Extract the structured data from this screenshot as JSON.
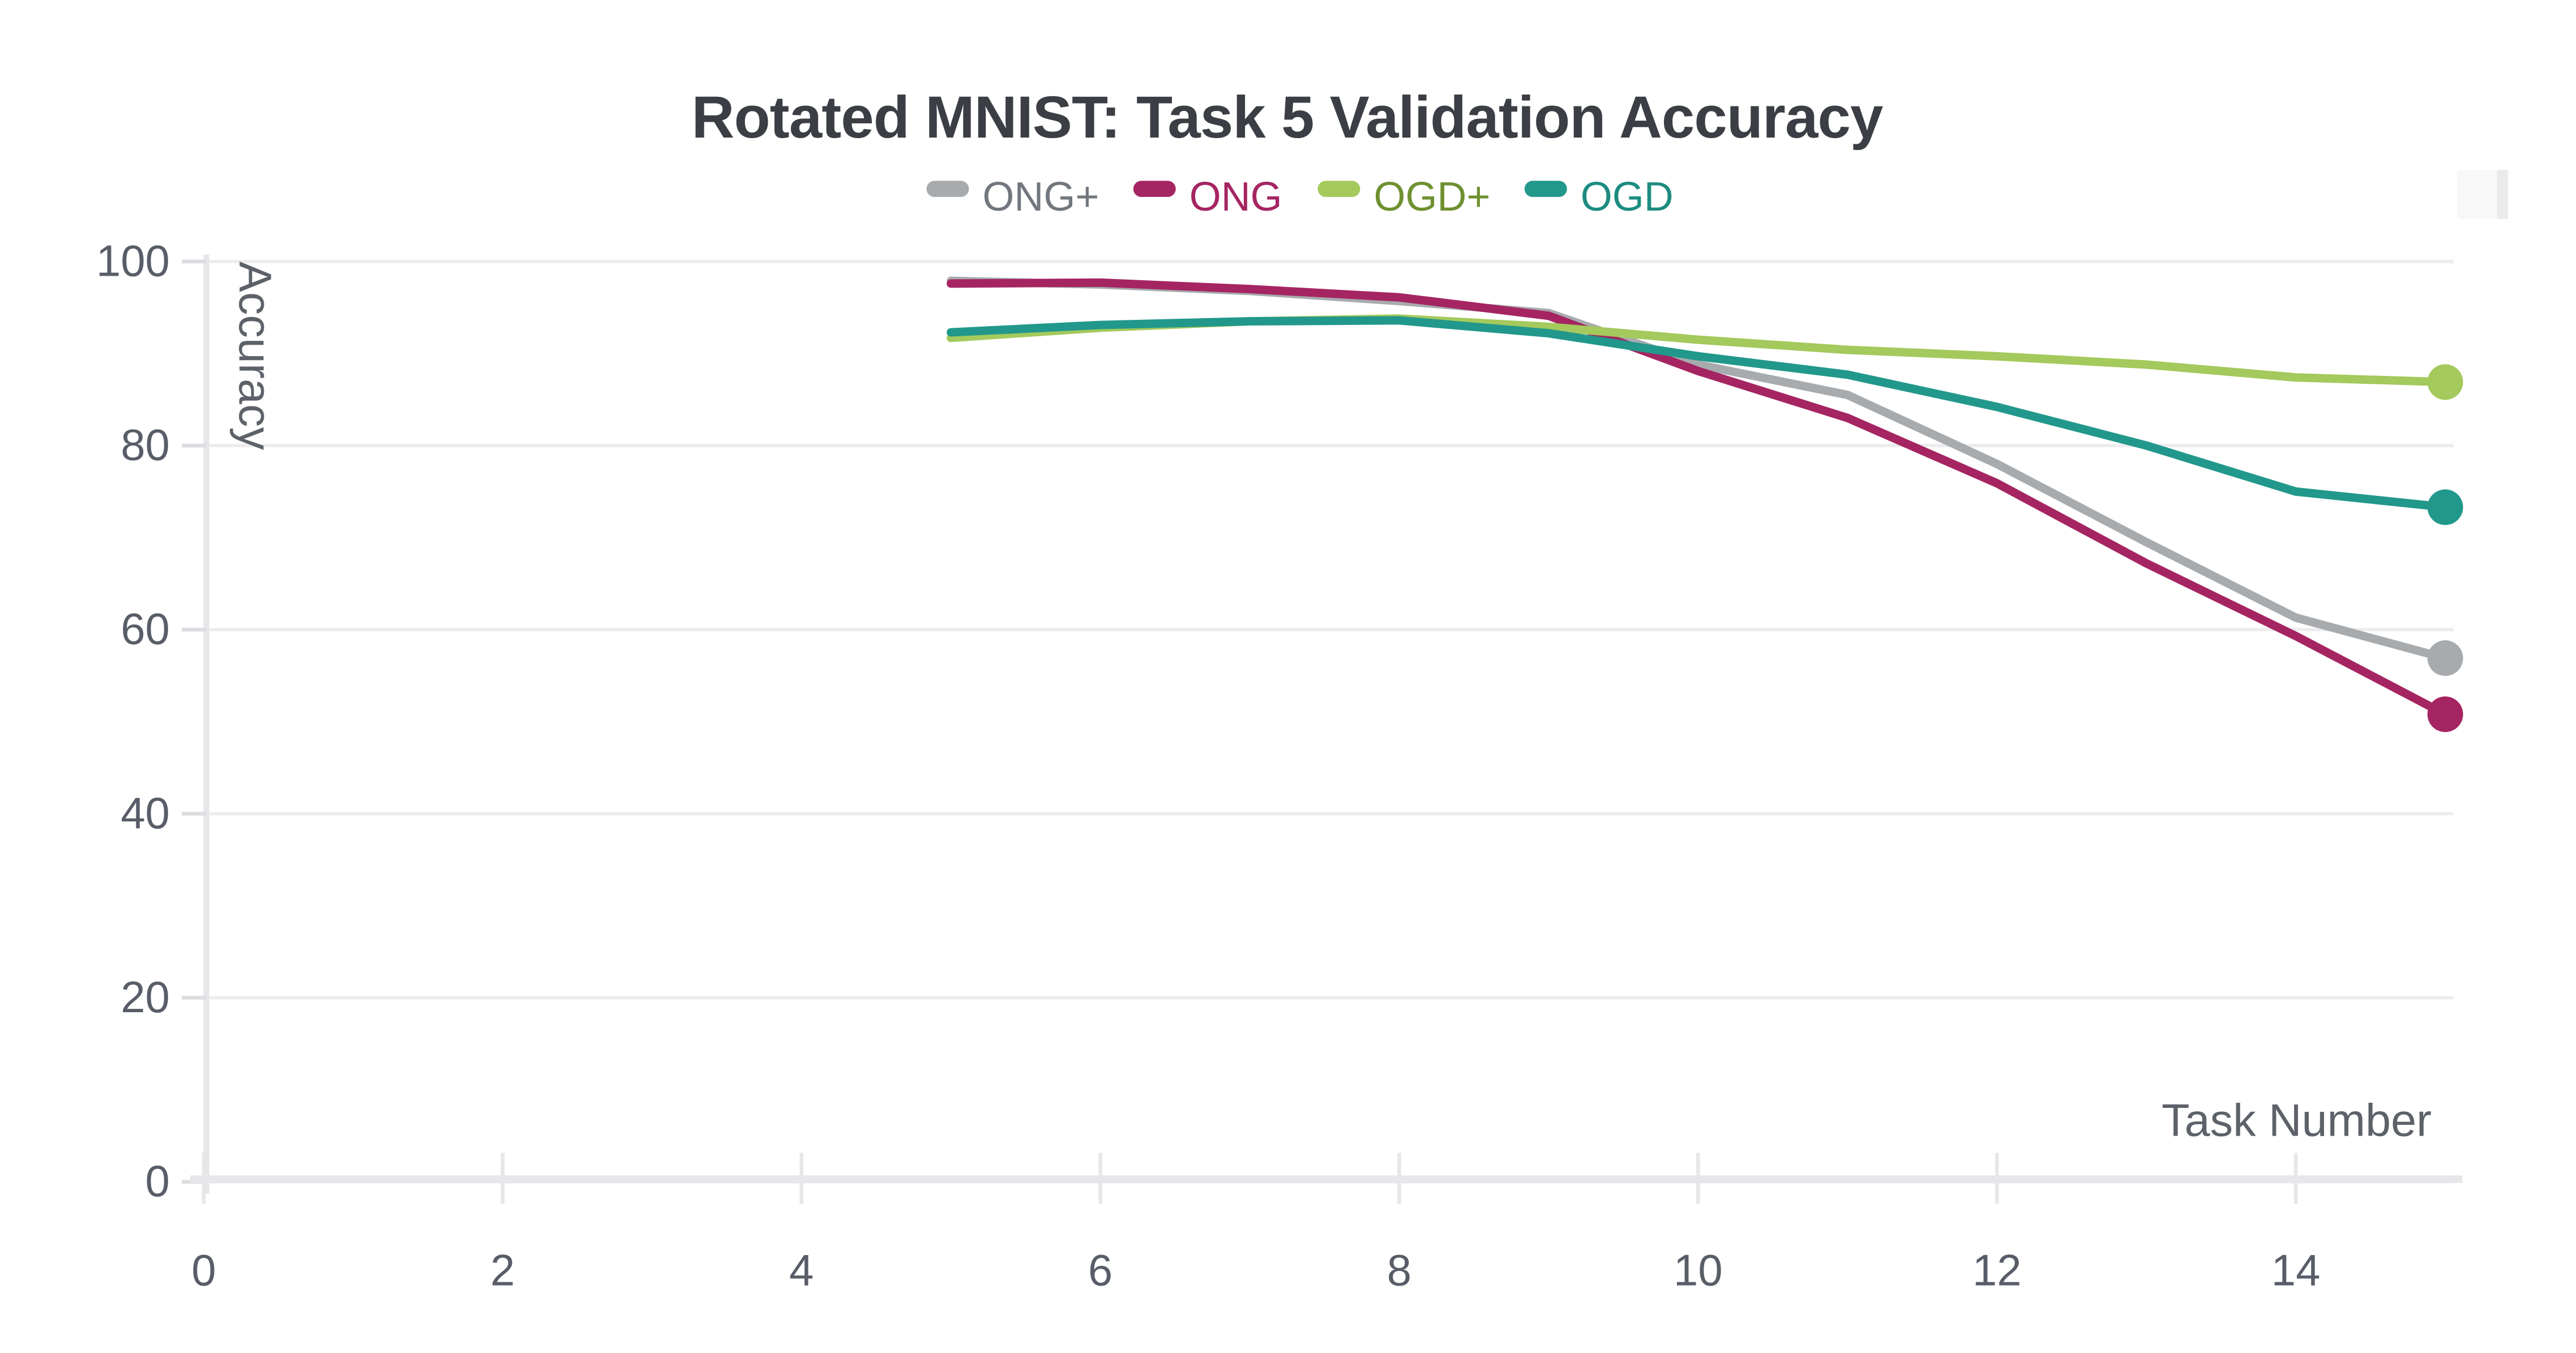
{
  "header": {
    "title": "Rotated MNIST: Task 5 Validation Accuracy"
  },
  "chart_data": {
    "type": "line",
    "title": "Rotated MNIST: Task 5 Validation Accuracy",
    "xlabel": "Task Number",
    "ylabel": "Accuracy",
    "x": [
      5,
      6,
      7,
      8,
      9,
      10,
      11,
      12,
      13,
      14,
      15
    ],
    "series": [
      {
        "name": "ONG+",
        "color": "#a8abae",
        "label_color": "#72777f",
        "values": [
          97.9,
          97.5,
          96.8,
          95.7,
          94.4,
          88.8,
          85.5,
          78.0,
          69.5,
          61.3,
          56.9
        ]
      },
      {
        "name": "ONG",
        "color": "#a52562",
        "label_color": "#a52562",
        "values": [
          97.6,
          97.7,
          97.0,
          96.1,
          94.1,
          88.1,
          83.0,
          75.9,
          67.2,
          59.3,
          50.8
        ]
      },
      {
        "name": "OGD+",
        "color": "#a4c95c",
        "label_color": "#6f9030",
        "values": [
          91.7,
          92.8,
          93.5,
          93.8,
          92.9,
          91.5,
          90.4,
          89.7,
          88.8,
          87.4,
          86.9
        ]
      },
      {
        "name": "OGD",
        "color": "#21988b",
        "label_color": "#1d8c80",
        "values": [
          92.3,
          93.1,
          93.5,
          93.6,
          92.2,
          89.7,
          87.7,
          84.2,
          80.0,
          75.0,
          73.3
        ]
      }
    ],
    "xticks": [
      0,
      2,
      4,
      6,
      8,
      10,
      12,
      14
    ],
    "yticks": [
      0,
      20,
      40,
      60,
      80,
      100
    ],
    "xlim": [
      0,
      15.65
    ],
    "ylim": [
      0,
      100
    ],
    "grid": "horizontal",
    "legend_position": "top-center",
    "end_markers": true,
    "style": {
      "title_color": "#3b3e44",
      "tick_label_color": "#585d68",
      "axis_title_color": "#5d6169",
      "grid_color": "#ededf0",
      "axis_line_color": "#e7e7ea",
      "tick_mark_color": "#dddde1",
      "background": "#ffffff",
      "corner_widget_fill": "#f8f8f9",
      "corner_widget_edge": "#eaeaed"
    }
  }
}
